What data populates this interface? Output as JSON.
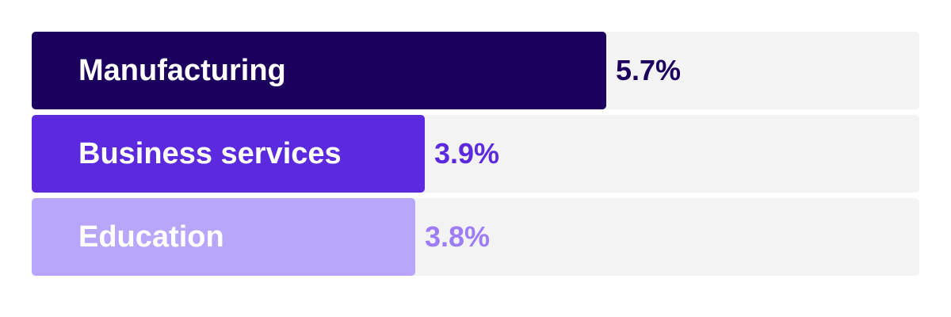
{
  "chart_data": {
    "type": "bar",
    "orientation": "horizontal",
    "categories": [
      "Manufacturing",
      "Business services",
      "Education"
    ],
    "values": [
      5.7,
      3.9,
      3.8
    ],
    "value_labels": [
      "5.7%",
      "3.9%",
      "3.8%"
    ],
    "unit": "%",
    "xlim": [
      0,
      8.8
    ],
    "grid": false,
    "colors": [
      "#1c005e",
      "#5b2ade",
      "#b8a6fb"
    ],
    "value_label_colors": [
      "#1c005e",
      "#5b2ade",
      "#9d7df5"
    ],
    "track_color": "#f3f3f3"
  }
}
